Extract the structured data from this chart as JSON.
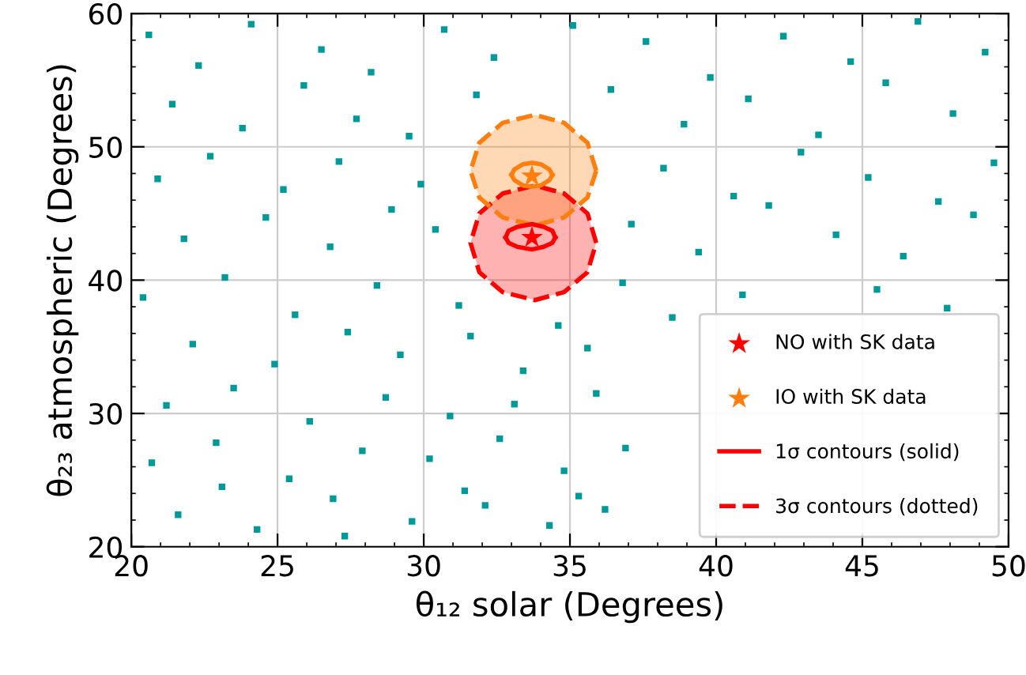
{
  "chart_data": {
    "type": "scatter",
    "xlabel": "θ₁₂ solar (Degrees)",
    "ylabel": "θ₂₃ atmospheric (Degrees)",
    "xlim": [
      20,
      50
    ],
    "ylim": [
      20,
      60
    ],
    "xticks": [
      20,
      25,
      30,
      35,
      40,
      45,
      50
    ],
    "yticks": [
      20,
      30,
      40,
      50,
      60
    ],
    "grid": true,
    "legend": "bottom right",
    "series": [
      {
        "color": "#009999",
        "marker": "square",
        "x": [
          20.6,
          22.3,
          24.1,
          26.5,
          28.2,
          30.7,
          32.4,
          35.1,
          37.6,
          39.8,
          42.3,
          44.6,
          46.9,
          49.2,
          21.4,
          23.8,
          25.9,
          27.7,
          29.5,
          31.8,
          36.4,
          38.9,
          41.1,
          43.5,
          45.8,
          48.1,
          20.9,
          22.7,
          25.2,
          27.1,
          29.9,
          38.2,
          40.6,
          42.9,
          45.2,
          47.6,
          49.5,
          21.8,
          24.6,
          26.8,
          28.9,
          30.4,
          37.1,
          39.4,
          41.8,
          44.1,
          46.4,
          48.8,
          20.4,
          23.2,
          25.6,
          28.4,
          31.2,
          36.8,
          38.5,
          40.9,
          34.6,
          45.5,
          47.9,
          22.1,
          24.9,
          27.4,
          29.2,
          31.6,
          33.4,
          35.6,
          21.2,
          23.5,
          26.1,
          28.7,
          30.9,
          33.1,
          35.9,
          20.7,
          22.9,
          25.4,
          27.9,
          30.2,
          32.6,
          34.8,
          36.9,
          21.6,
          24.3,
          26.9,
          29.6,
          32.1,
          34.3,
          36.2,
          23.1,
          27.3,
          31.4,
          35.3
        ],
        "values": [
          58.4,
          56.1,
          59.2,
          57.3,
          55.6,
          58.8,
          56.7,
          59.1,
          57.9,
          55.2,
          58.3,
          56.4,
          59.4,
          57.1,
          53.2,
          51.4,
          54.6,
          52.1,
          50.8,
          53.9,
          54.3,
          51.7,
          53.6,
          50.9,
          54.8,
          52.5,
          47.6,
          49.3,
          46.8,
          48.9,
          47.2,
          48.4,
          46.3,
          49.6,
          47.7,
          45.9,
          48.8,
          43.1,
          44.7,
          42.5,
          45.3,
          43.8,
          44.2,
          42.1,
          45.6,
          43.4,
          41.8,
          44.9,
          38.7,
          40.2,
          37.4,
          39.6,
          38.1,
          39.8,
          37.2,
          38.9,
          36.6,
          39.3,
          37.9,
          35.2,
          33.7,
          36.1,
          34.4,
          35.8,
          33.2,
          34.9,
          30.6,
          31.9,
          29.4,
          31.2,
          29.8,
          30.7,
          31.5,
          26.3,
          27.8,
          25.1,
          27.2,
          26.6,
          28.1,
          25.7,
          27.4,
          22.4,
          21.3,
          23.6,
          21.9,
          23.1,
          21.6,
          22.8,
          24.5,
          20.8,
          24.2,
          23.8
        ]
      },
      {
        "name": "NO with SK data",
        "color": "#ff0000",
        "marker": "star",
        "x": [
          33.7
        ],
        "values": [
          43.2
        ]
      },
      {
        "name": "IO with SK data",
        "color": "#ff7f0e",
        "marker": "star",
        "x": [
          33.7
        ],
        "values": [
          47.8
        ]
      },
      {
        "type": "line",
        "name": "1σ contours (solid)",
        "color": "#ff0000",
        "line_style": "solid",
        "x": [
          32.8,
          32.9,
          33.2,
          33.7,
          34.1,
          34.4,
          34.5
        ],
        "values": [
          43.2,
          43.7,
          44.0,
          44.2,
          44.0,
          43.7,
          43.2
        ]
      },
      {
        "type": "line",
        "color": "#ff0000",
        "line_style": "solid",
        "x": [
          32.8,
          32.9,
          33.2,
          33.7,
          34.1,
          34.4,
          34.5
        ],
        "values": [
          43.2,
          42.8,
          42.5,
          42.3,
          42.5,
          42.8,
          43.2
        ]
      },
      {
        "type": "line",
        "color": "#ff7f0e",
        "line_style": "solid",
        "x": [
          33.0,
          33.1,
          33.4,
          33.7,
          34.0,
          34.3,
          34.4
        ],
        "values": [
          47.9,
          48.3,
          48.7,
          48.8,
          48.7,
          48.3,
          47.9
        ]
      },
      {
        "type": "line",
        "color": "#ff7f0e",
        "line_style": "solid",
        "x": [
          33.0,
          33.1,
          33.4,
          33.7,
          34.0,
          34.3,
          34.4
        ],
        "values": [
          47.9,
          47.5,
          47.1,
          47.0,
          47.1,
          47.5,
          47.9
        ]
      },
      {
        "type": "area",
        "name": "3σ contours (dotted)",
        "color": "#ff0000",
        "line_style": "dashed",
        "x": [
          35.9,
          35.6,
          34.8,
          33.8,
          32.7,
          31.9,
          31.6,
          31.9,
          32.7,
          33.8,
          34.8,
          35.6,
          35.9
        ],
        "values": [
          42.8,
          45.0,
          46.5,
          47.1,
          46.5,
          45.0,
          42.8,
          40.6,
          39.1,
          38.5,
          39.1,
          40.6,
          42.8
        ]
      },
      {
        "type": "area",
        "color": "#ff7f0e",
        "line_style": "dashed",
        "x": [
          35.9,
          35.6,
          34.8,
          33.8,
          32.7,
          31.9,
          31.6,
          31.9,
          32.7,
          33.8,
          34.8,
          35.6,
          35.9
        ],
        "values": [
          48.2,
          50.3,
          51.8,
          52.4,
          51.8,
          50.3,
          48.2,
          46.2,
          44.7,
          44.1,
          44.7,
          46.2,
          48.2
        ]
      }
    ]
  }
}
